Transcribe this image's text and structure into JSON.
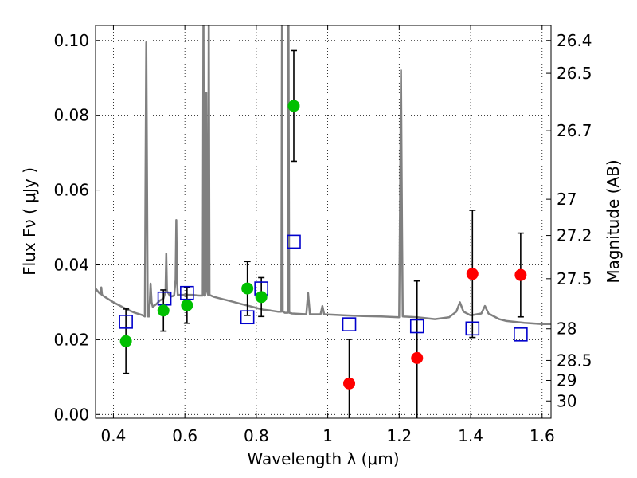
{
  "chart_data": {
    "type": "scatter",
    "xlabel": "Wavelength  λ (μm)",
    "ylabel": "Flux  Fν  ( μJy )",
    "y2label": "Magnitude (AB)",
    "xlim": [
      0.35,
      1.625
    ],
    "ylim": [
      -0.001,
      0.104
    ],
    "grid": true,
    "x_ticks": [
      0.4,
      0.6,
      0.8,
      1.0,
      1.2,
      1.4,
      1.6
    ],
    "x_tick_labels": [
      "0.4",
      "0.6",
      "0.8",
      "1",
      "1.2",
      "1.4",
      "1.6"
    ],
    "y_ticks": [
      0.0,
      0.02,
      0.04,
      0.06,
      0.08,
      0.1
    ],
    "y_tick_labels": [
      "0.00",
      "0.02",
      "0.04",
      "0.06",
      "0.08",
      "0.10"
    ],
    "mag_ticks": [
      26.4,
      26.5,
      26.7,
      27,
      27.2,
      27.5,
      28,
      28.5,
      29,
      30
    ],
    "mag_tick_labels": [
      "26.4",
      "26.5",
      "26.7",
      "27",
      "27.2",
      "27.5",
      "28",
      "28.5",
      "29",
      "30"
    ],
    "mag_zero_point": 23.9,
    "detections": {
      "color": "#00c000",
      "points": [
        {
          "x": 0.435,
          "y": 0.0196,
          "err": 0.0086
        },
        {
          "x": 0.54,
          "y": 0.0278,
          "err": 0.0055
        },
        {
          "x": 0.606,
          "y": 0.0292,
          "err": 0.0048
        },
        {
          "x": 0.775,
          "y": 0.0337,
          "err": 0.0072
        },
        {
          "x": 0.814,
          "y": 0.0314,
          "err": 0.0052
        },
        {
          "x": 0.905,
          "y": 0.0825,
          "err": 0.0148
        }
      ]
    },
    "upper_limits": {
      "color": "#ff0000",
      "points": [
        {
          "x": 1.06,
          "y": 0.0083,
          "err": 0.0118
        },
        {
          "x": 1.25,
          "y": 0.0151,
          "err": 0.0206
        },
        {
          "x": 1.405,
          "y": 0.0376,
          "err": 0.017
        },
        {
          "x": 1.54,
          "y": 0.0373,
          "err": 0.0112
        }
      ]
    },
    "model_photometry": {
      "color": "#0000cc",
      "points": [
        {
          "x": 0.435,
          "y": 0.0248
        },
        {
          "x": 0.543,
          "y": 0.031
        },
        {
          "x": 0.606,
          "y": 0.0325
        },
        {
          "x": 0.775,
          "y": 0.026
        },
        {
          "x": 0.814,
          "y": 0.0337
        },
        {
          "x": 0.905,
          "y": 0.0462
        },
        {
          "x": 1.06,
          "y": 0.0241
        },
        {
          "x": 1.25,
          "y": 0.0236
        },
        {
          "x": 1.405,
          "y": 0.023
        },
        {
          "x": 1.54,
          "y": 0.0214
        }
      ]
    },
    "model_spectrum": {
      "color": "#808080",
      "points": [
        [
          0.35,
          0.0337
        ],
        [
          0.36,
          0.0325
        ],
        [
          0.364,
          0.0322
        ],
        [
          0.366,
          0.034
        ],
        [
          0.368,
          0.032
        ],
        [
          0.38,
          0.0312
        ],
        [
          0.4,
          0.03
        ],
        [
          0.42,
          0.029
        ],
        [
          0.44,
          0.028
        ],
        [
          0.46,
          0.0272
        ],
        [
          0.48,
          0.0266
        ],
        [
          0.488,
          0.0262
        ],
        [
          0.49,
          0.065
        ],
        [
          0.492,
          0.0995
        ],
        [
          0.494,
          0.065
        ],
        [
          0.496,
          0.0262
        ],
        [
          0.5,
          0.0262
        ],
        [
          0.504,
          0.035
        ],
        [
          0.507,
          0.03
        ],
        [
          0.51,
          0.0288
        ],
        [
          0.52,
          0.0295
        ],
        [
          0.53,
          0.0305
        ],
        [
          0.54,
          0.031
        ],
        [
          0.546,
          0.033
        ],
        [
          0.548,
          0.043
        ],
        [
          0.55,
          0.033
        ],
        [
          0.56,
          0.0315
        ],
        [
          0.57,
          0.0318
        ],
        [
          0.574,
          0.036
        ],
        [
          0.576,
          0.052
        ],
        [
          0.578,
          0.036
        ],
        [
          0.58,
          0.032
        ],
        [
          0.6,
          0.032
        ],
        [
          0.62,
          0.032
        ],
        [
          0.64,
          0.0318
        ],
        [
          0.65,
          0.0318
        ],
        [
          0.652,
          0.11
        ],
        [
          0.654,
          0.0318
        ],
        [
          0.657,
          0.0318
        ],
        [
          0.66,
          0.086
        ],
        [
          0.662,
          0.033
        ],
        [
          0.665,
          0.032
        ],
        [
          0.667,
          0.11
        ],
        [
          0.669,
          0.032
        ],
        [
          0.68,
          0.0315
        ],
        [
          0.7,
          0.031
        ],
        [
          0.72,
          0.0305
        ],
        [
          0.74,
          0.03
        ],
        [
          0.76,
          0.0295
        ],
        [
          0.78,
          0.029
        ],
        [
          0.8,
          0.0285
        ],
        [
          0.82,
          0.028
        ],
        [
          0.84,
          0.0278
        ],
        [
          0.86,
          0.0275
        ],
        [
          0.87,
          0.0275
        ],
        [
          0.872,
          0.11
        ],
        [
          0.874,
          0.0275
        ],
        [
          0.88,
          0.0272
        ],
        [
          0.888,
          0.0272
        ],
        [
          0.89,
          0.11
        ],
        [
          0.892,
          0.0272
        ],
        [
          0.9,
          0.027
        ],
        [
          0.94,
          0.0268
        ],
        [
          0.945,
          0.0325
        ],
        [
          0.95,
          0.0268
        ],
        [
          0.98,
          0.0268
        ],
        [
          0.985,
          0.029
        ],
        [
          0.99,
          0.0268
        ],
        [
          1.05,
          0.0265
        ],
        [
          1.1,
          0.0263
        ],
        [
          1.15,
          0.0262
        ],
        [
          1.2,
          0.026
        ],
        [
          1.202,
          0.05
        ],
        [
          1.205,
          0.092
        ],
        [
          1.208,
          0.05
        ],
        [
          1.21,
          0.0262
        ],
        [
          1.25,
          0.026
        ],
        [
          1.3,
          0.0255
        ],
        [
          1.34,
          0.026
        ],
        [
          1.36,
          0.0275
        ],
        [
          1.37,
          0.03
        ],
        [
          1.38,
          0.0275
        ],
        [
          1.4,
          0.0265
        ],
        [
          1.43,
          0.027
        ],
        [
          1.44,
          0.029
        ],
        [
          1.45,
          0.027
        ],
        [
          1.48,
          0.0255
        ],
        [
          1.5,
          0.025
        ],
        [
          1.55,
          0.0245
        ],
        [
          1.6,
          0.0242
        ],
        [
          1.625,
          0.0242
        ]
      ]
    }
  }
}
